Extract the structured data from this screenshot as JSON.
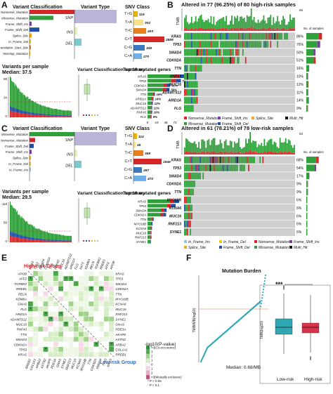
{
  "panels": {
    "A": "A",
    "B": "B",
    "C": "C",
    "D": "D",
    "E": "E",
    "F": "F"
  },
  "A": {
    "variant_classification": "Variant Classification",
    "classes": [
      "Nonsense_Mutation",
      "Missense_Mutation",
      "Frame_Shift_Ins",
      "Frame_Shift_Del",
      "Splice_Site",
      "In_Frame_Del",
      "Translation_Start_Site",
      "Nonstop_Mutation"
    ],
    "variant_type": "Variant Type",
    "types": [
      "SNP",
      "INS",
      "DEL"
    ],
    "snv_class": "SNV Class",
    "snv": [
      "T>G",
      "T>A",
      "T>C",
      "C>T",
      "C>G",
      "C>A"
    ],
    "snv_values": [
      "116",
      "302",
      "403",
      "2859",
      "349",
      "270"
    ],
    "vps_title": "Variants per sample",
    "vps_median": "Median: 37.5",
    "vcs_title": "Variant Classification summary",
    "top10": "Top 10 mutated genes",
    "genes": [
      "KRAS",
      "TP53",
      "CDKN2A",
      "SMAD4",
      "TTN",
      "ARID1A",
      "MUC16",
      "ADAMTS12",
      "RNF43",
      "FLG"
    ],
    "gene_pct": [
      "86%",
      "76%",
      "51%",
      "50%",
      "16%",
      "14%",
      "12%",
      "11%",
      "10%",
      "9%"
    ],
    "xticks": [
      "0",
      "24",
      "48",
      "72"
    ],
    "yticks": [
      "68",
      "34",
      "0"
    ]
  },
  "B": {
    "title": "Altered in 77 (96.25%) of 80 high-risk samples",
    "tmb": "TMB",
    "tmb_max": "69",
    "nos": "No. of samples",
    "genes": [
      "KRAS",
      "TP53",
      "SMAD4",
      "CDKN2A",
      "TTN",
      "RNF43",
      "MUC16",
      "ADAMTS12",
      "ARID1A",
      "FLG"
    ],
    "pct": [
      "86%",
      "76%",
      "50%",
      "51%",
      "16%",
      "10%",
      "12%",
      "11%",
      "14%",
      "9%"
    ],
    "legend": [
      "Nonsense_Mutation",
      "Frame_Shift_Ins",
      "Splice_Site",
      "Multi_Hit",
      "Missense_Mutation",
      "Frame_Shift_Del"
    ]
  },
  "C": {
    "variant_classification": "Variant Classification",
    "classes": [
      "Missense_Mutation",
      "Nonsense_Mutation",
      "Frame_Shift_Del",
      "Frame_Shift_Ins",
      "Splice_Site",
      "In_Frame_Del",
      "In_Frame_Ins"
    ],
    "variant_type": "Variant Type",
    "types": [
      "SNP",
      "INS",
      "DEL"
    ],
    "snv_class": "SNV Class",
    "snv": [
      "T>G",
      "T>A",
      "T>C",
      "C>T",
      "C>G",
      "C>A"
    ],
    "snv_values": [
      "114",
      "49",
      "358",
      "1949",
      "287",
      "472"
    ],
    "vps_title": "Variants per sample",
    "vps_median": "Median: 29.5",
    "vcs_title": "Variant Classification summary",
    "top10": "Top 10 mutated genes",
    "genes": [
      "KRAS",
      "TP53",
      "SMAD4",
      "CDKN2A",
      "TTN",
      "MYO18B",
      "KCNA6",
      "MUC16",
      "RNF213",
      "SYNE1"
    ],
    "yticks": [
      "118",
      "59",
      "0"
    ]
  },
  "D": {
    "title": "Altered in 61 (78.21%) of 78 low-risk samples",
    "tmb": "TMB",
    "tmb_max": "53",
    "nos": "No. of samples",
    "genes": [
      "KRAS",
      "TP53",
      "SMAD4",
      "CDKN2A",
      "TTN",
      "MYO18B",
      "KCNA6",
      "MUC16",
      "RNF213",
      "SYNE1"
    ],
    "pct": [
      "68%",
      "54%",
      "17%",
      "9%",
      "9%",
      "6%",
      "6%",
      "6%",
      "6%",
      "6%"
    ],
    "legend": [
      "In_Frame_Ins",
      "In_Frame_Del",
      "Nonsense_Mutation",
      "Frame_Shift_Ins",
      "Splice_Site",
      "Frame_Shift_Del",
      "Missense_Mutation",
      "Multi_Hit"
    ]
  },
  "E": {
    "high": "High-risk Group",
    "low": "Low-risk Group",
    "top_genes": [
      "KRAS",
      "TP53",
      "SMAD4",
      "CDKN2A",
      "TTN",
      "RNF43",
      "MUC16",
      "ADAMTS12",
      "ARID1A",
      "FLG",
      "FAT3",
      "KDM6A",
      "RELN",
      "TGFBR2",
      "RREB1",
      "AFF2",
      "APOB"
    ],
    "left_genes": [
      "APOB",
      "AFF2",
      "TGFBR2",
      "RREB1",
      "RELN",
      "KDM6A",
      "GNAS",
      "FLG",
      "ARID1A",
      "ADAMTS12",
      "MUC16",
      "RNF43",
      "TTN",
      "SMAD4",
      "CDKN2A",
      "TP53",
      "KRAS"
    ],
    "right_genes": [
      "KRAS",
      "TP53",
      "SMAD4",
      "CDKN2A",
      "TTN",
      "MYO18B",
      "KCNA6",
      "MUC16",
      "RNF213",
      "SYNE1",
      "GNAS",
      "PDE3A",
      "AKAP6",
      "ASTN2",
      "APBA2",
      "COL1A1",
      "RREB1"
    ],
    "bottom_genes": [
      "RREB1",
      "COL1A1",
      "APBA2",
      "ASTN2",
      "AKAP6",
      "PDE3A",
      "GNAS",
      "SYNE1",
      "RNF213",
      "MUC16",
      "KCNA6",
      "MYO18B",
      "TTN",
      "CDKN2A",
      "SMAD4",
      "TP53",
      "KRAS"
    ],
    "legend_title": "-log10(P-value)",
    "legend": [
      ">3(Co-occurence)",
      "3",
      "2",
      "1",
      "0",
      "1",
      "2",
      ">3(Mutually exclusive)"
    ],
    "sig": [
      "* P < 0.05",
      "· P < 0.1"
    ]
  },
  "F": {
    "title": "Mutation Burden",
    "ylabel": "TMB/MB(log10)",
    "median": "Median: 0.68/MB",
    "box_ylabel": "TMB(log10)",
    "groups": [
      "Low-risk",
      "High-risk"
    ],
    "sig": "***",
    "yticks": [
      "2",
      "1",
      "0",
      "-1"
    ]
  },
  "colors": {
    "missense": "#2fa03a",
    "nonsense": "#d62728",
    "fs_del": "#1f4fa6",
    "fs_ins": "#7b3f99",
    "splice": "#f5a623",
    "inf_del": "#f0c419",
    "inf_ins": "#8fc7d9",
    "multi": "#111111",
    "snp": "#b9b4d8",
    "ins": "#e6f1b8",
    "del": "#7ec9cc",
    "tg": "#f0b400",
    "ta": "#f6e28a",
    "tc": "#e8801e",
    "ct": "#d62728",
    "cg": "#3b79c3",
    "ca": "#6fb0e8",
    "teal": "#2fa8b4",
    "red": "#d9324a",
    "grey": "#cfcfcf"
  }
}
